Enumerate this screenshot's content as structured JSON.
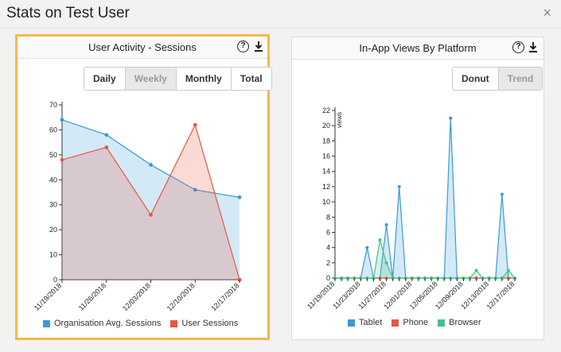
{
  "header": {
    "title": "Stats on Test User",
    "close_glyph": "×"
  },
  "colors": {
    "blue": "#3b9ad9",
    "red": "#e7573f",
    "green": "#45c28a",
    "highlight": "#f6b74a"
  },
  "sessions_panel": {
    "title": "User Activity - Sessions",
    "help_glyph": "?",
    "toggle": {
      "options": [
        "Daily",
        "Weekly",
        "Monthly",
        "Total"
      ],
      "active": "Weekly"
    },
    "legend": [
      "Organisation Avg. Sessions",
      "User Sessions"
    ]
  },
  "views_panel": {
    "title": "In-App Views By Platform",
    "help_glyph": "?",
    "toggle": {
      "options": [
        "Donut",
        "Trend"
      ],
      "active": "Trend"
    },
    "legend": [
      "Tablet",
      "Phone",
      "Browser"
    ]
  },
  "chart_data": [
    {
      "type": "area",
      "categories": [
        "11/19/2018",
        "11/26/2018",
        "12/03/2018",
        "12/10/2018",
        "12/17/2018"
      ],
      "ylim": [
        0,
        70
      ],
      "yticks": [
        0,
        10,
        20,
        30,
        40,
        50,
        60,
        70
      ],
      "series": [
        {
          "name": "Organisation Avg. Sessions",
          "color": "#3b9ad9",
          "values": [
            64,
            58,
            46,
            36,
            33
          ]
        },
        {
          "name": "User Sessions",
          "color": "#e7573f",
          "values": [
            48,
            53,
            26,
            62,
            0
          ]
        }
      ]
    },
    {
      "type": "area",
      "ylabel": "views",
      "ylim": [
        0,
        22
      ],
      "yticks": [
        0,
        2,
        4,
        6,
        8,
        10,
        12,
        14,
        16,
        18,
        20,
        22
      ],
      "x_tick_labels": [
        "11/19/2018",
        "11/23/2018",
        "11/27/2018",
        "12/01/2018",
        "12/05/2018",
        "12/09/2018",
        "12/13/2018",
        "12/17/2018"
      ],
      "x_start": "11/19/2018",
      "x_end": "12/17/2018",
      "series": [
        {
          "name": "Tablet",
          "color": "#3b9ad9",
          "values": [
            0,
            0,
            0,
            0,
            0,
            4,
            0,
            0,
            7,
            0,
            12,
            0,
            0,
            0,
            0,
            0,
            0,
            0,
            21,
            0,
            0,
            0,
            0,
            0,
            0,
            0,
            11,
            0,
            0
          ]
        },
        {
          "name": "Phone",
          "color": "#e7573f",
          "values": [
            0,
            0,
            0,
            0,
            0,
            0,
            0,
            0,
            0,
            0,
            0,
            0,
            0,
            0,
            0,
            0,
            0,
            0,
            0,
            0,
            0,
            0,
            0,
            0,
            0,
            0,
            0,
            0,
            0
          ]
        },
        {
          "name": "Browser",
          "color": "#45c28a",
          "values": [
            0,
            0,
            0,
            0,
            0,
            0,
            0,
            5,
            2,
            0,
            0,
            0,
            0,
            0,
            0,
            0,
            0,
            0,
            0,
            0,
            0,
            0,
            1,
            0,
            0,
            0,
            0,
            1,
            0
          ]
        }
      ]
    }
  ]
}
